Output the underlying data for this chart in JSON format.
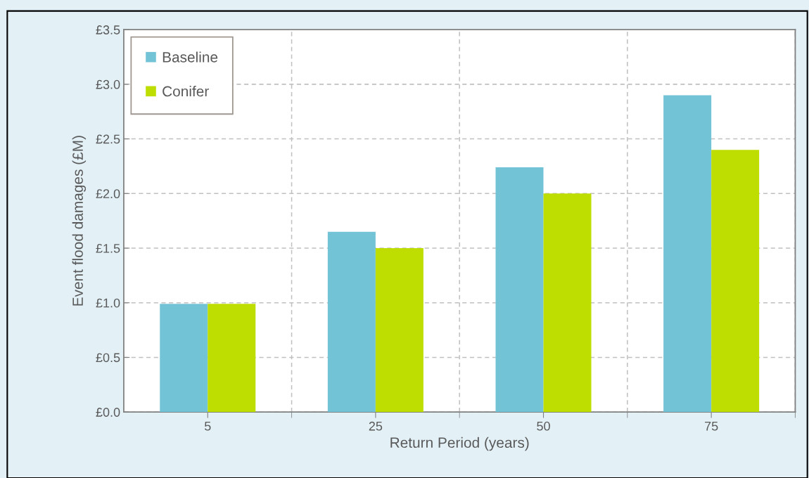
{
  "chart_data": {
    "type": "bar",
    "xlabel": "Return Period (years)",
    "ylabel": "Event flood damages (£M)",
    "categories": [
      "5",
      "25",
      "50",
      "75"
    ],
    "series": [
      {
        "name": "Baseline",
        "color": "#73c3d6",
        "values": [
          0.99,
          1.65,
          2.24,
          2.9
        ]
      },
      {
        "name": "Conifer",
        "color": "#bedd00",
        "values": [
          0.99,
          1.5,
          2.0,
          2.4
        ]
      }
    ],
    "ylim": [
      0,
      3.5
    ],
    "yticks": [
      {
        "value": 0,
        "label": "£0.0"
      },
      {
        "value": 0.5,
        "label": "£0.5"
      },
      {
        "value": 1,
        "label": "£1.0"
      },
      {
        "value": 1.5,
        "label": "£1.5"
      },
      {
        "value": 2,
        "label": "£2.0"
      },
      {
        "value": 2.5,
        "label": "£2.5"
      },
      {
        "value": 3,
        "label": "£3.0"
      },
      {
        "value": 3.5,
        "label": "£3.5"
      }
    ],
    "grid": true,
    "legend": "top left"
  }
}
